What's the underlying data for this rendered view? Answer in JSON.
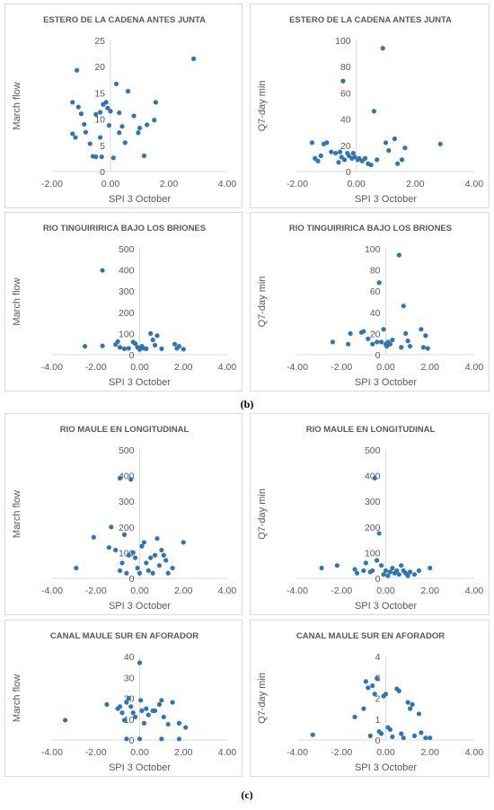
{
  "labels": {
    "b": "(b)",
    "c": "(c)"
  },
  "chart_data": [
    {
      "type": "scatter",
      "title": "ESTERO DE LA CADENA ANTES JUNTA",
      "xlabel": "SPI 3 October",
      "ylabel": "March flow",
      "xlim": [
        -2,
        4
      ],
      "ylim": [
        0,
        25
      ],
      "xticks": [
        "-2.00",
        "0.00",
        "2.00",
        "4.00"
      ],
      "yticks": [
        "0",
        "5",
        "10",
        "15",
        "20",
        "25"
      ],
      "points": [
        [
          -1.3,
          7.2
        ],
        [
          -1.2,
          6.5
        ],
        [
          -1.3,
          13.2
        ],
        [
          -1.1,
          12.3
        ],
        [
          -1.0,
          11
        ],
        [
          -1.15,
          19.3
        ],
        [
          -0.9,
          9
        ],
        [
          -0.85,
          7.5
        ],
        [
          -0.7,
          5.3
        ],
        [
          -0.6,
          2.9
        ],
        [
          -0.5,
          10.9
        ],
        [
          -0.5,
          2.8
        ],
        [
          -0.35,
          11.3
        ],
        [
          -0.35,
          6.5
        ],
        [
          -0.3,
          2.8
        ],
        [
          -0.25,
          12.8
        ],
        [
          -0.15,
          13.2
        ],
        [
          -0.1,
          12.1
        ],
        [
          -0.05,
          8.8
        ],
        [
          0.0,
          11.5
        ],
        [
          0.1,
          2.6
        ],
        [
          0.2,
          16.7
        ],
        [
          0.3,
          11.2
        ],
        [
          0.3,
          7.4
        ],
        [
          0.4,
          8.6
        ],
        [
          0.5,
          5.5
        ],
        [
          0.6,
          15.3
        ],
        [
          0.8,
          10.6
        ],
        [
          0.95,
          7.4
        ],
        [
          1.0,
          8.3
        ],
        [
          1.15,
          3
        ],
        [
          1.25,
          8.9
        ],
        [
          1.5,
          9.8
        ],
        [
          1.55,
          13.2
        ],
        [
          2.85,
          21.5
        ]
      ]
    },
    {
      "type": "scatter",
      "title": "ESTERO DE LA CADENA ANTES JUNTA",
      "xlabel": "SPI 3 October",
      "ylabel": "Q7-day min",
      "xlim": [
        -2,
        4
      ],
      "ylim": [
        0,
        100
      ],
      "xticks": [
        "-2.00",
        "0.00",
        "2.00",
        "4.00"
      ],
      "yticks": [
        "0",
        "20",
        "40",
        "60",
        "80",
        "100"
      ],
      "points": [
        [
          -1.5,
          22
        ],
        [
          -1.4,
          10
        ],
        [
          -1.3,
          8
        ],
        [
          -1.2,
          12
        ],
        [
          -1.1,
          21
        ],
        [
          -1.0,
          22
        ],
        [
          -0.85,
          15
        ],
        [
          -0.7,
          14
        ],
        [
          -0.6,
          7
        ],
        [
          -0.55,
          15
        ],
        [
          -0.5,
          11
        ],
        [
          -0.45,
          69
        ],
        [
          -0.4,
          9
        ],
        [
          -0.3,
          14
        ],
        [
          -0.25,
          12
        ],
        [
          -0.15,
          10
        ],
        [
          -0.1,
          14
        ],
        [
          -0.05,
          11
        ],
        [
          0.05,
          9
        ],
        [
          0.1,
          10
        ],
        [
          0.2,
          8
        ],
        [
          0.3,
          10
        ],
        [
          0.4,
          6
        ],
        [
          0.5,
          5
        ],
        [
          0.6,
          46
        ],
        [
          0.7,
          9
        ],
        [
          0.9,
          94
        ],
        [
          1.0,
          22
        ],
        [
          1.1,
          16
        ],
        [
          1.3,
          25
        ],
        [
          1.4,
          6
        ],
        [
          1.55,
          9
        ],
        [
          1.65,
          18
        ],
        [
          2.85,
          21
        ]
      ]
    },
    {
      "type": "scatter",
      "title": "RIO TINGUIRIRICA BAJO LOS BRIONES",
      "xlabel": "SPI 3 October",
      "ylabel": "March flow",
      "xlim": [
        -4,
        4
      ],
      "ylim": [
        0,
        500
      ],
      "xticks": [
        "-4.00",
        "-2.00",
        "0.00",
        "2.00",
        "4.00"
      ],
      "yticks": [
        "0",
        "100",
        "200",
        "300",
        "400",
        "500"
      ],
      "points": [
        [
          -2.5,
          40
        ],
        [
          -1.7,
          398
        ],
        [
          -1.7,
          42
        ],
        [
          -1.1,
          48
        ],
        [
          -1.0,
          62
        ],
        [
          -0.9,
          35
        ],
        [
          -0.7,
          28
        ],
        [
          -0.5,
          30
        ],
        [
          -0.3,
          60
        ],
        [
          -0.2,
          52
        ],
        [
          -0.1,
          35
        ],
        [
          0.0,
          25
        ],
        [
          0.1,
          40
        ],
        [
          0.2,
          30
        ],
        [
          0.3,
          28
        ],
        [
          0.5,
          100
        ],
        [
          0.6,
          70
        ],
        [
          0.7,
          45
        ],
        [
          0.8,
          90
        ],
        [
          1.0,
          28
        ],
        [
          1.6,
          50
        ],
        [
          1.7,
          30
        ],
        [
          1.8,
          40
        ],
        [
          2.0,
          26
        ]
      ]
    },
    {
      "type": "scatter",
      "title": "RIO TINGUIRIRICA BAJO LOS BRIONES",
      "xlabel": "SPI 3 October",
      "ylabel": "Q7-day min",
      "xlim": [
        -4,
        4
      ],
      "ylim": [
        0,
        100
      ],
      "xticks": [
        "-4.00",
        "-2.00",
        "0.00",
        "2.00",
        "4.00"
      ],
      "yticks": [
        "0",
        "20",
        "40",
        "60",
        "80",
        "100"
      ],
      "points": [
        [
          -2.4,
          12
        ],
        [
          -1.7,
          10
        ],
        [
          -1.6,
          20
        ],
        [
          -1.1,
          21
        ],
        [
          -1.0,
          22
        ],
        [
          -0.8,
          15
        ],
        [
          -0.6,
          10
        ],
        [
          -0.4,
          12
        ],
        [
          -0.3,
          68
        ],
        [
          -0.2,
          12
        ],
        [
          -0.1,
          24
        ],
        [
          0.0,
          10
        ],
        [
          0.05,
          8
        ],
        [
          0.1,
          12
        ],
        [
          0.2,
          10
        ],
        [
          0.3,
          14
        ],
        [
          0.6,
          94
        ],
        [
          0.7,
          7
        ],
        [
          0.8,
          46
        ],
        [
          0.9,
          20
        ],
        [
          1.0,
          13
        ],
        [
          1.1,
          8
        ],
        [
          1.6,
          24
        ],
        [
          1.7,
          7
        ],
        [
          1.8,
          18
        ],
        [
          1.9,
          6
        ]
      ]
    },
    {
      "type": "scatter",
      "title": "RIO MAULE EN LONGITUDINAL",
      "xlabel": "SPI 3 October",
      "ylabel": "March flow",
      "xlim": [
        -4,
        4
      ],
      "ylim": [
        0,
        500
      ],
      "xticks": [
        "-4.00",
        "-2.00",
        "0.00",
        "2.00",
        "4.00"
      ],
      "yticks": [
        "0",
        "100",
        "200",
        "300",
        "400",
        "500"
      ],
      "points": [
        [
          -2.9,
          40
        ],
        [
          -2.1,
          160
        ],
        [
          -1.4,
          120
        ],
        [
          -1.3,
          200
        ],
        [
          -1.1,
          110
        ],
        [
          -0.9,
          30
        ],
        [
          -0.9,
          390
        ],
        [
          -0.8,
          60
        ],
        [
          -0.7,
          170
        ],
        [
          -0.6,
          20
        ],
        [
          -0.5,
          90
        ],
        [
          -0.4,
          385
        ],
        [
          -0.3,
          100
        ],
        [
          -0.2,
          80
        ],
        [
          -0.1,
          40
        ],
        [
          0.0,
          20
        ],
        [
          0.1,
          125
        ],
        [
          0.2,
          140
        ],
        [
          0.3,
          60
        ],
        [
          0.4,
          30
        ],
        [
          0.5,
          80
        ],
        [
          0.6,
          20
        ],
        [
          0.7,
          90
        ],
        [
          0.8,
          155
        ],
        [
          0.9,
          50
        ],
        [
          1.0,
          110
        ],
        [
          1.1,
          90
        ],
        [
          1.2,
          70
        ],
        [
          1.3,
          20
        ],
        [
          1.5,
          40
        ],
        [
          2.0,
          140
        ]
      ]
    },
    {
      "type": "scatter",
      "title": "RIO MAULE EN LONGITUDINAL",
      "xlabel": "SPI 3 October",
      "ylabel": "Q7-day min",
      "xlim": [
        -4,
        4
      ],
      "ylim": [
        0,
        500
      ],
      "xticks": [
        "-4.00",
        "-2.00",
        "0.00",
        "2.00",
        "4.00"
      ],
      "yticks": [
        "0",
        "100",
        "200",
        "300",
        "400",
        "500"
      ],
      "points": [
        [
          -2.9,
          40
        ],
        [
          -2.2,
          50
        ],
        [
          -1.4,
          35
        ],
        [
          -1.3,
          20
        ],
        [
          -1.0,
          30
        ],
        [
          -0.9,
          60
        ],
        [
          -0.7,
          25
        ],
        [
          -0.6,
          30
        ],
        [
          -0.5,
          390
        ],
        [
          -0.4,
          70
        ],
        [
          -0.3,
          175
        ],
        [
          -0.2,
          50
        ],
        [
          -0.1,
          15
        ],
        [
          0.0,
          30
        ],
        [
          0.1,
          10
        ],
        [
          0.2,
          25
        ],
        [
          0.3,
          40
        ],
        [
          0.4,
          20
        ],
        [
          0.5,
          30
        ],
        [
          0.6,
          15
        ],
        [
          0.7,
          50
        ],
        [
          0.8,
          30
        ],
        [
          0.9,
          20
        ],
        [
          1.0,
          10
        ],
        [
          1.1,
          25
        ],
        [
          1.3,
          15
        ],
        [
          1.5,
          30
        ],
        [
          2.0,
          40
        ]
      ]
    },
    {
      "type": "scatter",
      "title": "CANAL MAULE SUR EN AFORADOR",
      "xlabel": "SPI 3 October",
      "ylabel": "March flow",
      "xlim": [
        -4,
        4
      ],
      "ylim": [
        0,
        40
      ],
      "xticks": [
        "-4.00",
        "-2.00",
        "0.00",
        "2.00",
        "4.00"
      ],
      "yticks": [
        "0",
        "10",
        "20",
        "30",
        "40"
      ],
      "points": [
        [
          -3.4,
          9.5
        ],
        [
          -1.5,
          17
        ],
        [
          -1.0,
          15
        ],
        [
          -0.9,
          16
        ],
        [
          -0.8,
          13
        ],
        [
          -0.7,
          9.5
        ],
        [
          -0.6,
          18
        ],
        [
          -0.5,
          20
        ],
        [
          -0.4,
          16
        ],
        [
          -0.3,
          13
        ],
        [
          -0.2,
          11
        ],
        [
          0.0,
          37
        ],
        [
          0.05,
          19
        ],
        [
          0.1,
          14
        ],
        [
          0.2,
          8
        ],
        [
          0.3,
          15
        ],
        [
          0.4,
          12
        ],
        [
          0.6,
          14
        ],
        [
          0.7,
          14
        ],
        [
          0.9,
          17
        ],
        [
          1.0,
          19
        ],
        [
          1.1,
          11
        ],
        [
          1.3,
          7.5
        ],
        [
          1.5,
          18
        ],
        [
          1.8,
          8
        ],
        [
          2.1,
          6
        ],
        [
          -0.6,
          0.5
        ],
        [
          0.0,
          0.5
        ],
        [
          1.0,
          0.5
        ],
        [
          1.8,
          0.5
        ]
      ]
    },
    {
      "type": "scatter",
      "title": "CANAL MAULE SUR EN AFORADOR",
      "xlabel": "SPI 3 October",
      "ylabel": "Q7-day min",
      "xlim": [
        -4,
        4
      ],
      "ylim": [
        0,
        4
      ],
      "xticks": [
        "-4.00",
        "-2.00",
        "0.00",
        "2.00",
        "4.00"
      ],
      "yticks": [
        "0",
        "1",
        "2",
        "3",
        "4"
      ],
      "points": [
        [
          -3.3,
          0.25
        ],
        [
          -1.4,
          1.1
        ],
        [
          -1.0,
          1.5
        ],
        [
          -0.9,
          2.8
        ],
        [
          -0.8,
          2.5
        ],
        [
          -0.7,
          0.2
        ],
        [
          -0.6,
          2.6
        ],
        [
          -0.5,
          2.2
        ],
        [
          -0.4,
          2.95
        ],
        [
          -0.3,
          0.4
        ],
        [
          -0.2,
          0.3
        ],
        [
          -0.1,
          2.1
        ],
        [
          0.0,
          2.2
        ],
        [
          0.1,
          0.6
        ],
        [
          0.2,
          0.5
        ],
        [
          0.3,
          0.15
        ],
        [
          0.5,
          2.45
        ],
        [
          0.6,
          2.35
        ],
        [
          0.7,
          0.3
        ],
        [
          0.8,
          0.1
        ],
        [
          1.0,
          1.8
        ],
        [
          1.1,
          1.5
        ],
        [
          1.2,
          1.7
        ],
        [
          1.3,
          0.2
        ],
        [
          1.5,
          1.25
        ],
        [
          1.6,
          0.35
        ],
        [
          1.8,
          0.1
        ],
        [
          2.0,
          0.1
        ]
      ]
    }
  ]
}
